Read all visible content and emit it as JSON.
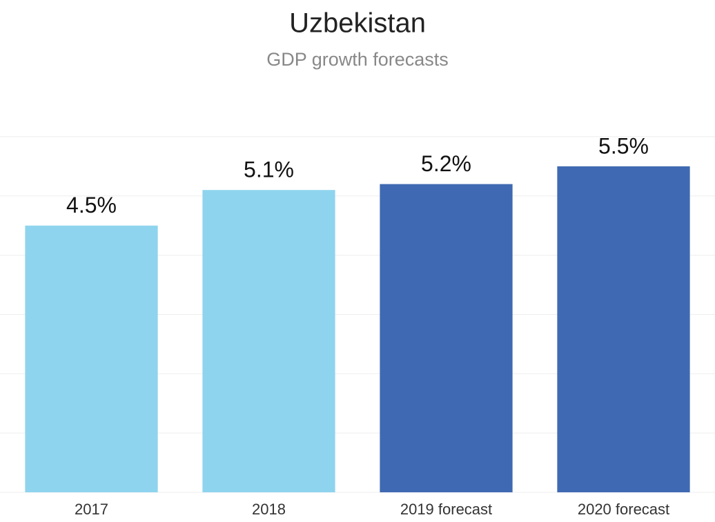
{
  "chart_data": {
    "type": "bar",
    "title": "Uzbekistan",
    "subtitle": "GDP growth forecasts",
    "categories": [
      "2017",
      "2018",
      "2019 forecast",
      "2020 forecast"
    ],
    "values": [
      4.5,
      5.1,
      5.2,
      5.5
    ],
    "value_labels": [
      "4.5%",
      "5.1%",
      "5.2%",
      "5.5%"
    ],
    "colors": [
      "#8fd4ee",
      "#8fd4ee",
      "#3f69b2",
      "#3f69b2"
    ],
    "ylim": [
      0,
      6.5
    ],
    "yticks": [
      0,
      1,
      2,
      3,
      4,
      5,
      6
    ],
    "grid": true
  }
}
